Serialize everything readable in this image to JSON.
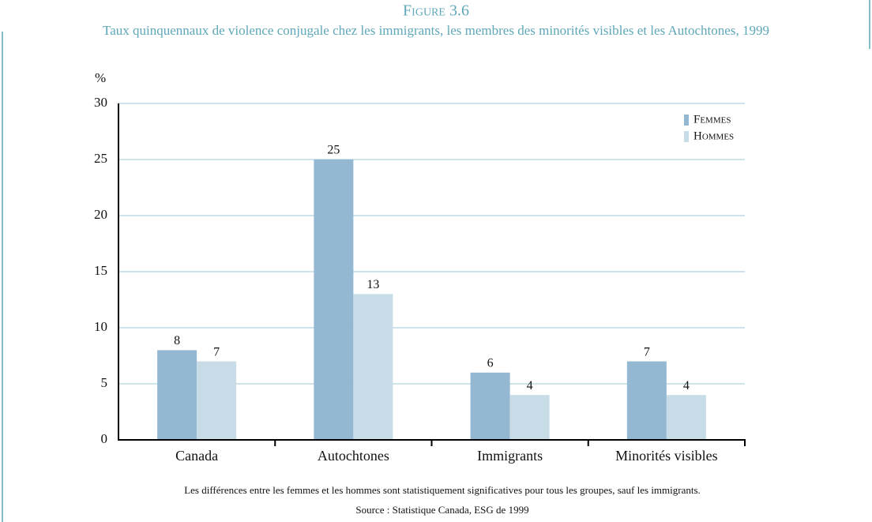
{
  "chart_data": {
    "type": "bar",
    "title": "Figure 3.6",
    "subtitle": "Taux quinquennaux de violence conjugale chez les immigrants, les membres des minorités visibles et les Autochtones, 1999",
    "y_label": "%",
    "categories": [
      "Canada",
      "Autochtones",
      "Immigrants",
      "Minorités visibles"
    ],
    "series": [
      {
        "name": "Femmes",
        "color": "#94b8d2",
        "values": [
          8,
          25,
          6,
          7
        ]
      },
      {
        "name": "Hommes",
        "color": "#c8dce8",
        "values": [
          7,
          13,
          4,
          4
        ]
      }
    ],
    "ylim": [
      0,
      30
    ],
    "yticks": [
      0,
      5,
      10,
      15,
      20,
      25,
      30
    ],
    "grid": true,
    "legend": "top-right",
    "notes": [
      "Les différences entre les femmes et les hommes sont statistiquement significatives pour tous les groupes, sauf les immigrants.",
      "Source : Statistique Canada, ESG de 1999"
    ]
  }
}
